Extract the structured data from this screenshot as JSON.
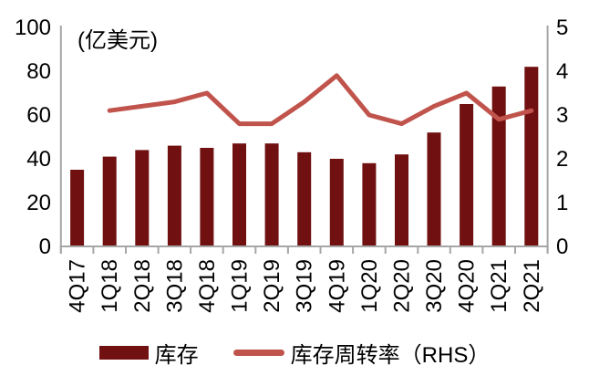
{
  "chart_data": {
    "type": "bar+line",
    "unit": "(亿美元)",
    "categories": [
      "4Q17",
      "1Q18",
      "2Q18",
      "3Q18",
      "4Q18",
      "1Q19",
      "2Q19",
      "3Q19",
      "4Q19",
      "1Q20",
      "2Q20",
      "3Q20",
      "4Q20",
      "1Q21",
      "2Q21"
    ],
    "series": [
      {
        "name": "库存",
        "type": "bar",
        "axis": "left",
        "color": "#701010",
        "values": [
          35,
          41,
          44,
          46,
          45,
          47,
          47,
          43,
          40,
          38,
          42,
          52,
          65,
          73,
          82
        ]
      },
      {
        "name": "库存周转率（RHS）",
        "type": "line",
        "axis": "right",
        "color": "#C0544C",
        "values": [
          null,
          3.1,
          3.2,
          3.3,
          3.5,
          2.8,
          2.8,
          3.3,
          3.9,
          3.0,
          2.8,
          3.2,
          3.5,
          2.9,
          3.1
        ]
      }
    ],
    "left_axis": {
      "min": 0,
      "max": 100,
      "ticks": [
        0,
        20,
        40,
        60,
        80,
        100
      ]
    },
    "right_axis": {
      "min": 0,
      "max": 5,
      "ticks": [
        0,
        1,
        2,
        3,
        4,
        5
      ]
    },
    "grid": false,
    "legend_position": "bottom",
    "axis_color": "#A6A6A6",
    "label_color": "#000000"
  }
}
